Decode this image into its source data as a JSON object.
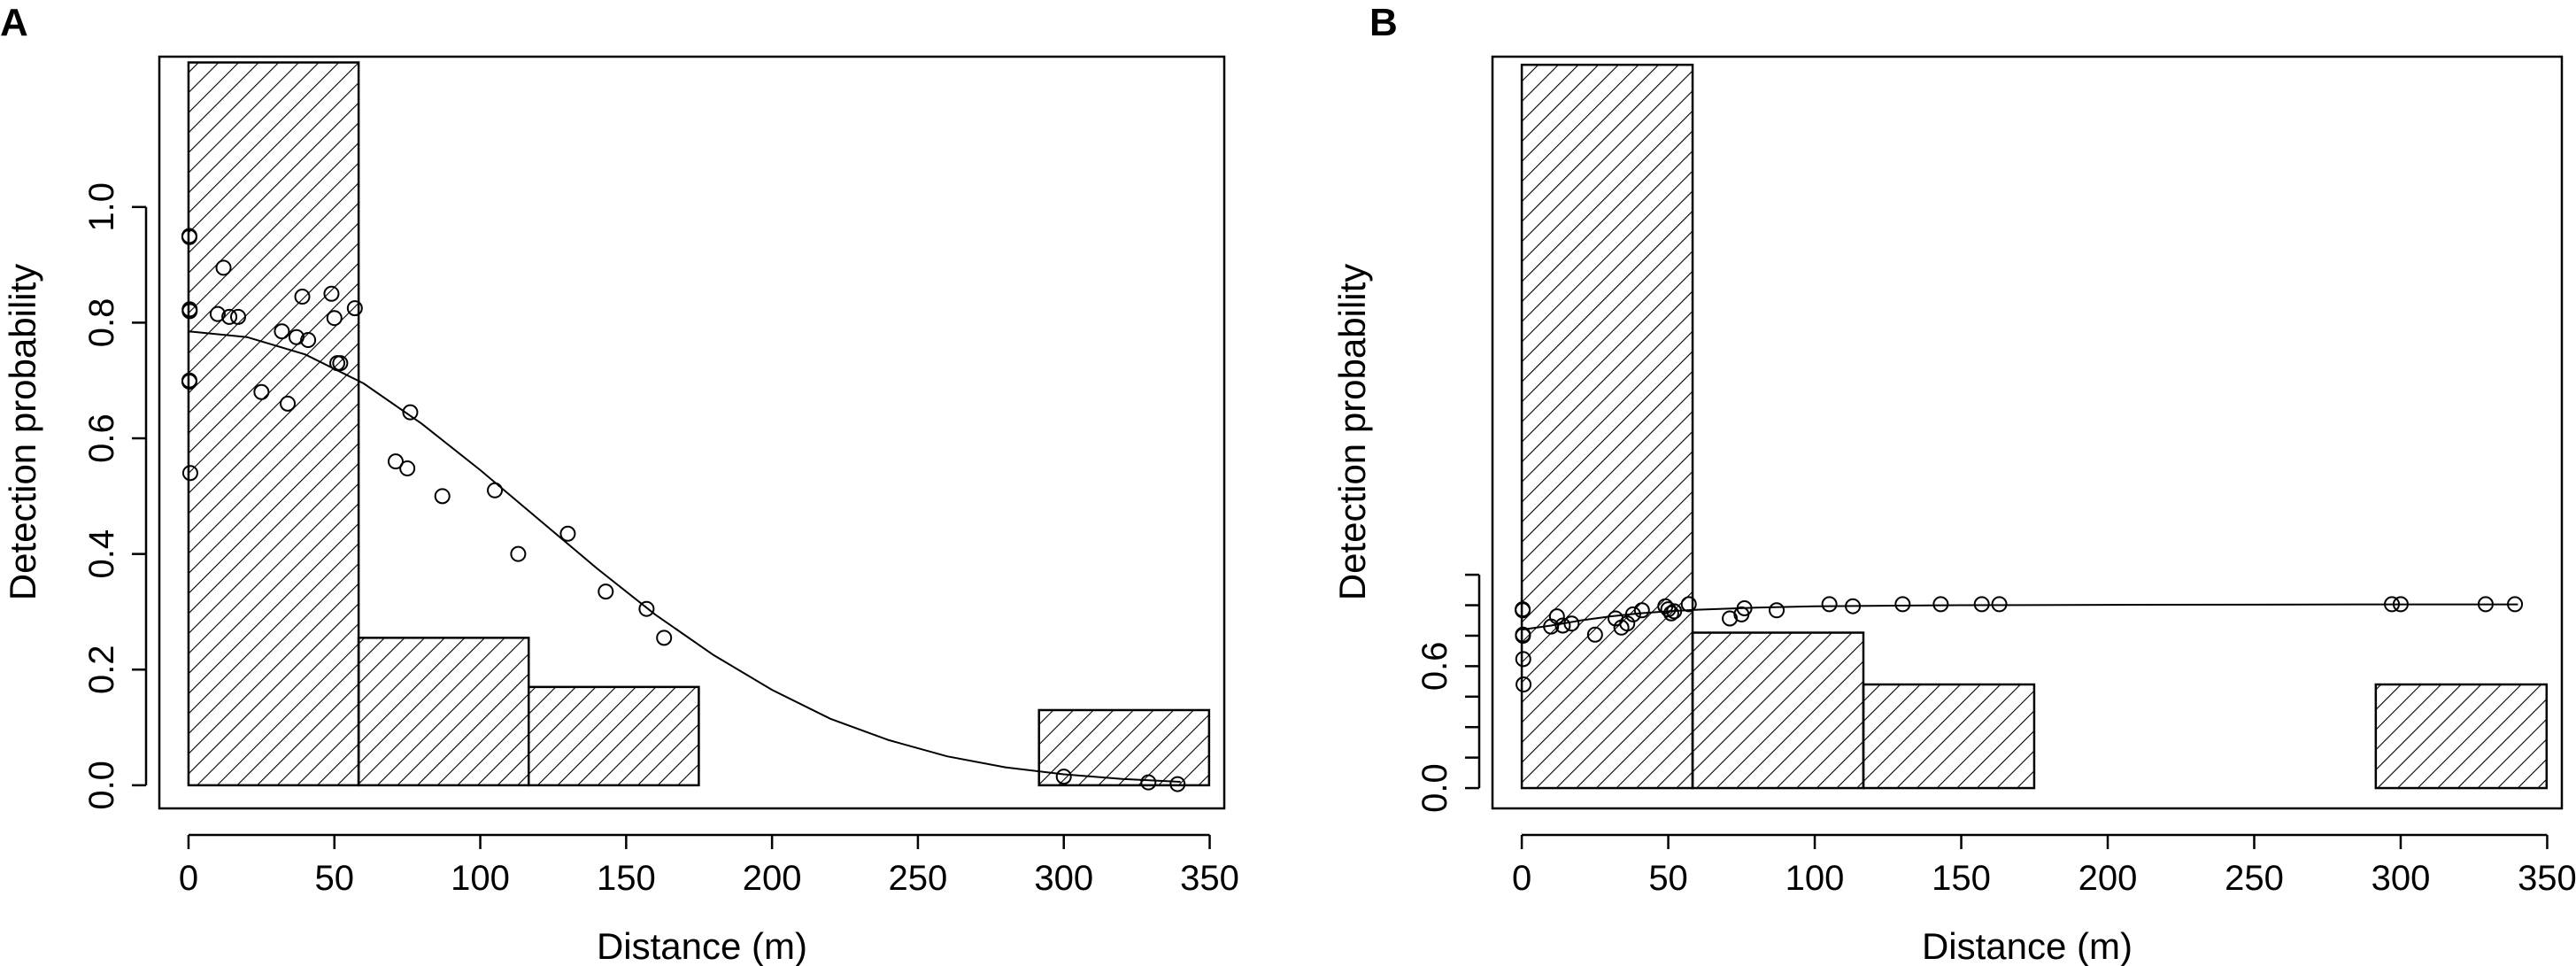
{
  "chart_data": [
    {
      "type": "bar",
      "panel_label": "A",
      "xlabel": "Distance (m)",
      "ylabel": "Detection probability",
      "xlim": [
        -10,
        355
      ],
      "ylim": [
        -0.04,
        1.26
      ],
      "x_ticks": [
        0,
        50,
        100,
        150,
        200,
        250,
        300,
        350
      ],
      "y_ticks": [
        0.0,
        0.2,
        0.4,
        0.6,
        0.8,
        1.0
      ],
      "y_tick_labels": [
        "0.0",
        "0.2",
        "0.4",
        "0.6",
        "0.8",
        "1.0"
      ],
      "histogram_bins": [
        {
          "x0": 0,
          "x1": 58.3,
          "height": 1.25
        },
        {
          "x0": 58.3,
          "x1": 116.6,
          "height": 0.255
        },
        {
          "x0": 116.6,
          "x1": 174.9,
          "height": 0.17
        },
        {
          "x0": 291.5,
          "x1": 349.8,
          "height": 0.13
        }
      ],
      "points": [
        [
          0.3,
          0.95
        ],
        [
          0.3,
          0.948
        ],
        [
          0.4,
          0.82
        ],
        [
          0.4,
          0.823
        ],
        [
          0.3,
          0.7
        ],
        [
          0.3,
          0.698
        ],
        [
          0.6,
          0.54
        ],
        [
          10,
          0.815
        ],
        [
          12,
          0.895
        ],
        [
          14,
          0.81
        ],
        [
          17,
          0.81
        ],
        [
          25,
          0.68
        ],
        [
          32,
          0.785
        ],
        [
          34,
          0.66
        ],
        [
          37,
          0.775
        ],
        [
          39,
          0.845
        ],
        [
          41,
          0.77
        ],
        [
          49,
          0.85
        ],
        [
          50,
          0.808
        ],
        [
          51,
          0.73
        ],
        [
          52,
          0.73
        ],
        [
          57,
          0.825
        ],
        [
          71,
          0.56
        ],
        [
          75,
          0.548
        ],
        [
          76,
          0.645
        ],
        [
          87,
          0.5
        ],
        [
          105,
          0.51
        ],
        [
          113,
          0.4
        ],
        [
          130,
          0.435
        ],
        [
          143,
          0.335
        ],
        [
          157,
          0.305
        ],
        [
          163,
          0.255
        ],
        [
          300,
          0.015
        ],
        [
          329,
          0.005
        ],
        [
          339,
          0.002
        ]
      ],
      "fitted_curve": [
        [
          0,
          0.785
        ],
        [
          20,
          0.775
        ],
        [
          40,
          0.745
        ],
        [
          60,
          0.695
        ],
        [
          80,
          0.625
        ],
        [
          100,
          0.545
        ],
        [
          120,
          0.46
        ],
        [
          140,
          0.375
        ],
        [
          160,
          0.295
        ],
        [
          180,
          0.225
        ],
        [
          200,
          0.165
        ],
        [
          220,
          0.115
        ],
        [
          240,
          0.078
        ],
        [
          260,
          0.05
        ],
        [
          280,
          0.031
        ],
        [
          300,
          0.019
        ],
        [
          320,
          0.011
        ],
        [
          340,
          0.006
        ]
      ]
    },
    {
      "type": "bar",
      "panel_label": "B",
      "xlabel": "Distance (m)",
      "ylabel": "Detection probability",
      "xlim": [
        -10,
        355
      ],
      "ylim": [
        -0.1,
        3.6
      ],
      "x_ticks": [
        0,
        50,
        100,
        150,
        200,
        250,
        300,
        350
      ],
      "y_ticks": [
        0.0,
        0.15,
        0.3,
        0.45,
        0.6,
        0.75,
        0.9,
        1.05
      ],
      "y_tick_labels": [
        "0.0",
        "",
        "",
        "",
        "0.6",
        "",
        "",
        ""
      ],
      "histogram_bins": [
        {
          "x0": 0,
          "x1": 58.3,
          "height": 3.56
        },
        {
          "x0": 58.3,
          "x1": 116.6,
          "height": 0.765
        },
        {
          "x0": 116.6,
          "x1": 174.9,
          "height": 0.51
        },
        {
          "x0": 291.5,
          "x1": 349.8,
          "height": 0.51
        }
      ],
      "points": [
        [
          0.3,
          0.88
        ],
        [
          0.3,
          0.875
        ],
        [
          0.4,
          0.755
        ],
        [
          0.4,
          0.75
        ],
        [
          0.5,
          0.635
        ],
        [
          0.6,
          0.51
        ],
        [
          10,
          0.795
        ],
        [
          12,
          0.845
        ],
        [
          14,
          0.8
        ],
        [
          17,
          0.81
        ],
        [
          25,
          0.755
        ],
        [
          32,
          0.835
        ],
        [
          34,
          0.79
        ],
        [
          36,
          0.81
        ],
        [
          38,
          0.855
        ],
        [
          41,
          0.875
        ],
        [
          49,
          0.895
        ],
        [
          50,
          0.88
        ],
        [
          51,
          0.86
        ],
        [
          52,
          0.87
        ],
        [
          57,
          0.905
        ],
        [
          71,
          0.835
        ],
        [
          75,
          0.855
        ],
        [
          76,
          0.885
        ],
        [
          87,
          0.875
        ],
        [
          105,
          0.905
        ],
        [
          113,
          0.895
        ],
        [
          130,
          0.905
        ],
        [
          143,
          0.905
        ],
        [
          157,
          0.905
        ],
        [
          163,
          0.905
        ],
        [
          297,
          0.905
        ],
        [
          300,
          0.905
        ],
        [
          329,
          0.905
        ],
        [
          339,
          0.905
        ]
      ],
      "fitted_curve": [
        [
          0,
          0.78
        ],
        [
          10,
          0.8
        ],
        [
          20,
          0.825
        ],
        [
          30,
          0.845
        ],
        [
          40,
          0.86
        ],
        [
          50,
          0.87
        ],
        [
          60,
          0.878
        ],
        [
          80,
          0.888
        ],
        [
          100,
          0.895
        ],
        [
          150,
          0.9
        ],
        [
          200,
          0.902
        ],
        [
          250,
          0.903
        ],
        [
          300,
          0.904
        ],
        [
          340,
          0.904
        ]
      ]
    }
  ]
}
